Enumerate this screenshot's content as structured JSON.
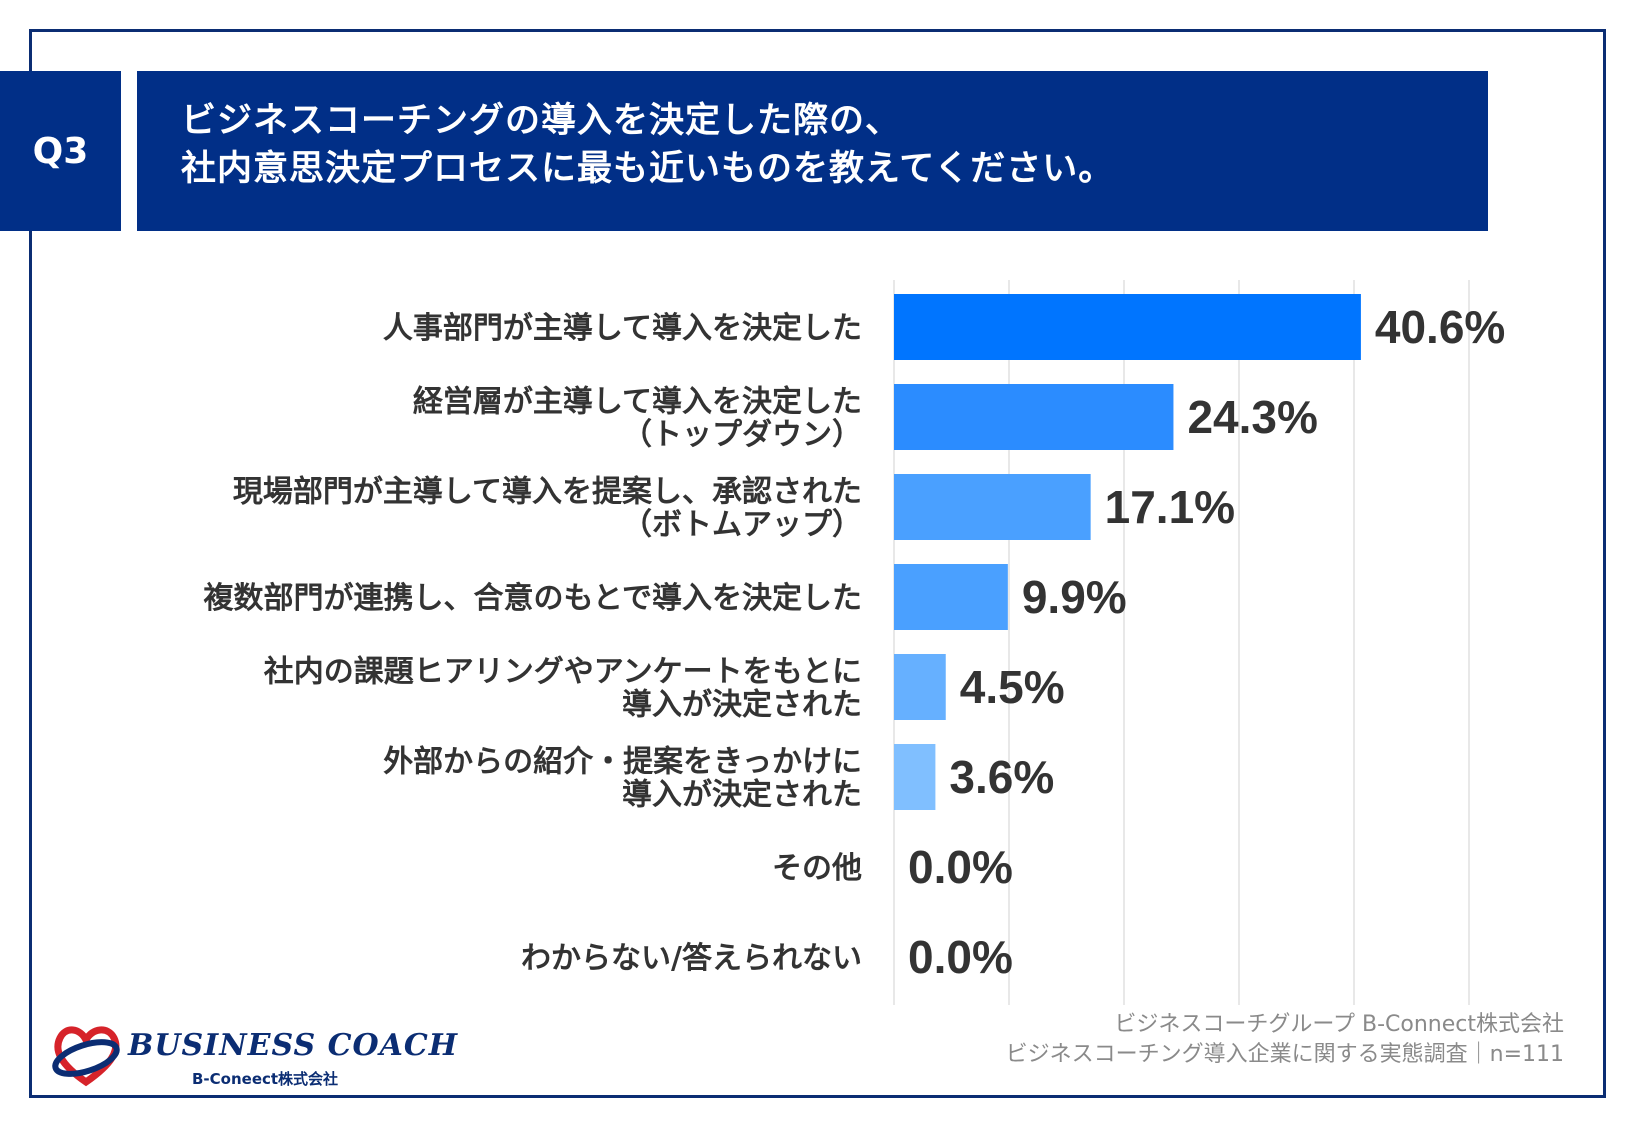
{
  "question_label": "Q3",
  "header": {
    "line1": "ビジネスコーチングの導入を決定した際の、",
    "line2": "社内意思決定プロセスに最も近いものを教えてください。"
  },
  "chart_data": {
    "type": "bar",
    "orientation": "horizontal",
    "title": "ビジネスコーチングの導入を決定した際の、社内意思決定プロセスに最も近いものを教えてください。",
    "unit": "%",
    "xlim": [
      0,
      50
    ],
    "grid": true,
    "categories": [
      [
        "人事部門が主導して導入を決定した"
      ],
      [
        "経営層が主導して導入を決定した",
        "（トップダウン）"
      ],
      [
        "現場部門が主導して導入を提案し、承認された",
        "（ボトムアップ）"
      ],
      [
        "複数部門が連携し、合意のもとで導入を決定した"
      ],
      [
        "社内の課題ヒアリングやアンケートをもとに",
        "導入が決定された"
      ],
      [
        "外部からの紹介・提案をきっかけに",
        "導入が決定された"
      ],
      [
        "その他"
      ],
      [
        "わからない/答えられない"
      ]
    ],
    "values": [
      40.6,
      24.3,
      17.1,
      9.9,
      4.5,
      3.6,
      0.0,
      0.0
    ],
    "value_labels": [
      "40.6%",
      "24.3%",
      "17.1%",
      "9.9%",
      "4.5%",
      "3.6%",
      "0.0%",
      "0.0%"
    ],
    "colors": [
      "#0075ff",
      "#2b8cff",
      "#4aa0ff",
      "#4aa0ff",
      "#66b0ff",
      "#80bfff",
      "#80bfff",
      "#80bfff"
    ]
  },
  "source": {
    "line1": "ビジネスコーチグループ B-Connect株式会社",
    "line2": "ビジネスコーチング導入企業に関する実態調査｜n=111"
  },
  "logo": {
    "name": "BUSINESS COACH",
    "sub": "B-Coneect株式会社",
    "mark": "®"
  },
  "colors": {
    "navy": "#012f87",
    "grid": "#d9d9d9"
  }
}
